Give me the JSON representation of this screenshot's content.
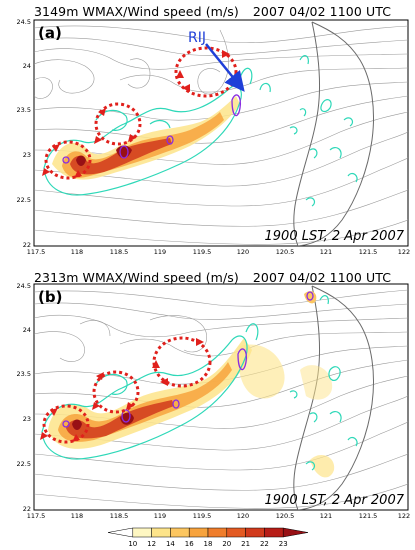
{
  "panels": [
    {
      "id": "a",
      "label": "(a)",
      "title": {
        "height": "3149m",
        "field": "WMAX/Wind speed (m/s)",
        "date": "2007 04/02",
        "time": "1100 UTC"
      },
      "caption": "1900 LST, 2 Apr 2007",
      "annotation": "RIJ",
      "x_ticks": [
        "117.5",
        "118",
        "118.5",
        "119",
        "119.5",
        "120",
        "120.5",
        "121",
        "121.5",
        "122"
      ],
      "y_ticks": [
        "24.5",
        "24",
        "23.5",
        "23",
        "22.5",
        "22"
      ]
    },
    {
      "id": "b",
      "label": "(b)",
      "title": {
        "height": "2313m",
        "field": "WMAX/Wind speed (m/s)",
        "date": "2007 04/02",
        "time": "1100 UTC"
      },
      "caption": "1900 LST, 2 Apr 2007",
      "x_ticks": [
        "117.5",
        "118",
        "118.5",
        "119",
        "119.5",
        "120",
        "120.5",
        "121",
        "121.5",
        "122"
      ],
      "y_ticks": [
        "24.5",
        "24",
        "23.5",
        "23",
        "22.5",
        "22"
      ]
    }
  ],
  "colorbar": {
    "ticks": [
      "10",
      "12",
      "14",
      "16",
      "18",
      "20",
      "21",
      "22",
      "23"
    ],
    "colors": [
      "#ffffff",
      "#fef7c2",
      "#fde48a",
      "#fcc660",
      "#f7a33d",
      "#ef7d2b",
      "#e35a22",
      "#d13a1c",
      "#b71d17",
      "#981015"
    ]
  },
  "colors": {
    "wmax_contour": "#2ed8b8",
    "wmax_strong": "#8a2be2",
    "circulation": "#e0201c",
    "rij_arrow": "#1f3fd8",
    "streamline": "#9a9a9a"
  }
}
